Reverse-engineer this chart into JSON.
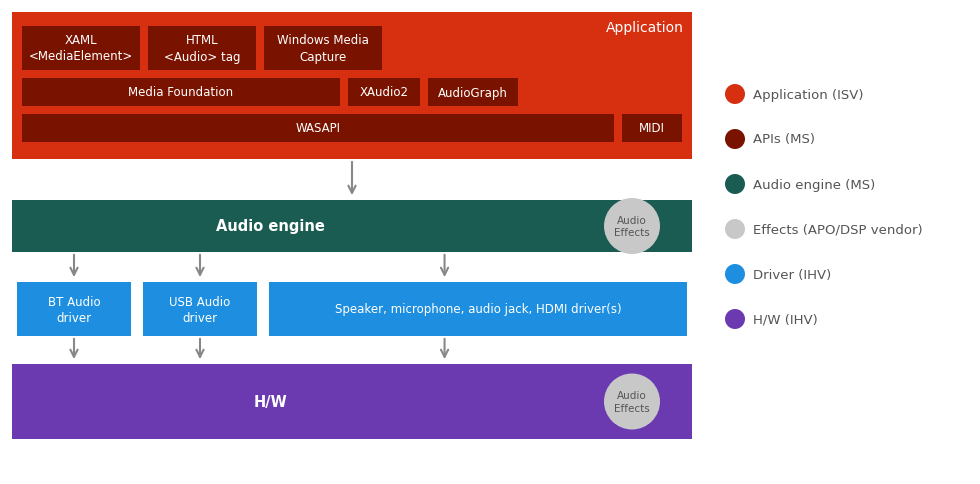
{
  "bg_color": "#ffffff",
  "app_color": "#d63010",
  "api_color": "#7a1200",
  "engine_color": "#1a5c52",
  "driver_color": "#1e8fe0",
  "hw_color": "#6b3ab0",
  "effects_color": "#c8c8c8",
  "arrow_color": "#888888",
  "legend": [
    {
      "label": "Application (ISV)",
      "color": "#d63010"
    },
    {
      "label": "APIs (MS)",
      "color": "#7a1200"
    },
    {
      "label": "Audio engine (MS)",
      "color": "#1a5c52"
    },
    {
      "label": "Effects (APO/DSP vendor)",
      "color": "#c8c8c8"
    },
    {
      "label": "Driver (IHV)",
      "color": "#1e8fe0"
    },
    {
      "label": "H/W (IHV)",
      "color": "#6b3ab0"
    }
  ],
  "app_label": "Application",
  "app_box1": "XAML\n<MediaElement>",
  "app_box2": "HTML\n<Audio> tag",
  "app_box3": "Windows Media\nCapture",
  "api_mf": "Media Foundation",
  "api_xa": "XAudio2",
  "api_ag": "AudioGraph",
  "api_wa": "WASAPI",
  "api_midi": "MIDI",
  "engine_label": "Audio engine",
  "effects_label": "Audio\nEffects",
  "drv_bt": "BT Audio\ndriver",
  "drv_usb": "USB Audio\ndriver",
  "drv_spk": "Speaker, microphone, audio jack, HDMI driver(s)",
  "hw_label": "H/W",
  "hw_effects_label": "Audio\nEffects"
}
